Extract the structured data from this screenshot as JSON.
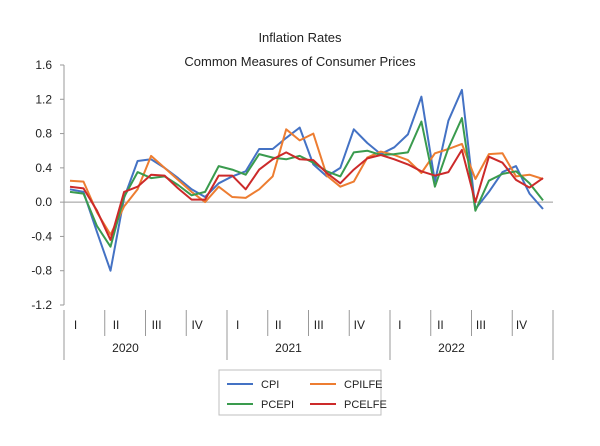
{
  "chart_data": {
    "type": "line",
    "title": "Inflation Rates",
    "subtitle": "Common Measures of Consumer Prices",
    "xlabel": "",
    "ylabel": "",
    "ylim": [
      -1.2,
      1.6
    ],
    "yticks": [
      "1.6",
      "1.2",
      "0.8",
      "0.4",
      "0.0",
      "-0.4",
      "-0.8",
      "-1.2"
    ],
    "quarters": [
      "I",
      "II",
      "III",
      "IV",
      "I",
      "II",
      "III",
      "IV",
      "I",
      "II",
      "III",
      "IV"
    ],
    "years": [
      "2020",
      "2021",
      "2022"
    ],
    "grid": false,
    "legend_position": "bottom",
    "series": [
      {
        "name": "CPI",
        "color": "#4472c4",
        "values": [
          0.15,
          0.12,
          -0.35,
          -0.8,
          0.05,
          0.48,
          0.5,
          0.4,
          0.28,
          0.15,
          0.06,
          0.22,
          0.3,
          0.36,
          0.62,
          0.62,
          0.75,
          0.87,
          0.44,
          0.3,
          0.4,
          0.85,
          0.69,
          0.56,
          0.64,
          0.79,
          1.23,
          0.24,
          0.95,
          1.31,
          -0.08,
          0.12,
          0.35,
          0.42,
          0.1,
          -0.08
        ]
      },
      {
        "name": "CPILFE",
        "color": "#ed7d31",
        "values": [
          0.25,
          0.24,
          -0.12,
          -0.38,
          -0.05,
          0.15,
          0.54,
          0.4,
          0.26,
          0.12,
          0.0,
          0.18,
          0.06,
          0.05,
          0.15,
          0.3,
          0.85,
          0.72,
          0.8,
          0.31,
          0.18,
          0.24,
          0.52,
          0.59,
          0.55,
          0.49,
          0.34,
          0.57,
          0.62,
          0.68,
          0.27,
          0.56,
          0.57,
          0.3,
          0.32,
          0.27
        ]
      },
      {
        "name": "PCEPI",
        "color": "#3a9b4e",
        "values": [
          0.12,
          0.1,
          -0.28,
          -0.52,
          0.06,
          0.35,
          0.28,
          0.3,
          0.2,
          0.08,
          0.12,
          0.42,
          0.38,
          0.32,
          0.56,
          0.52,
          0.5,
          0.54,
          0.46,
          0.36,
          0.3,
          0.58,
          0.6,
          0.55,
          0.56,
          0.58,
          0.94,
          0.18,
          0.63,
          0.98,
          -0.1,
          0.25,
          0.33,
          0.36,
          0.22,
          0.02
        ]
      },
      {
        "name": "PCELFE",
        "color": "#cc2a2a",
        "values": [
          0.18,
          0.16,
          -0.1,
          -0.44,
          0.12,
          0.18,
          0.32,
          0.31,
          0.16,
          0.03,
          0.03,
          0.31,
          0.31,
          0.15,
          0.38,
          0.5,
          0.58,
          0.5,
          0.49,
          0.34,
          0.22,
          0.38,
          0.51,
          0.55,
          0.5,
          0.44,
          0.36,
          0.31,
          0.35,
          0.61,
          0.0,
          0.53,
          0.46,
          0.26,
          0.17,
          0.28
        ]
      }
    ]
  }
}
